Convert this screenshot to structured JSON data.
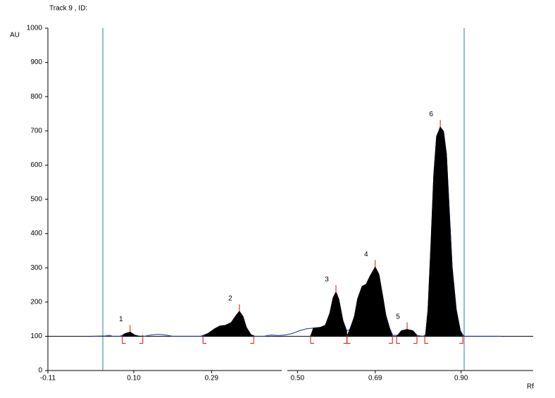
{
  "chart_data": {
    "type": "densitogram",
    "title": "Track  9 , ID:",
    "ylabel": "AU",
    "xlabel": "Rf",
    "xlim": [
      -0.11,
      1.076
    ],
    "ylim": [
      0,
      1000
    ],
    "xticks": [
      -0.11,
      {
        "value": 0.1,
        "label": "0.10"
      },
      0.29,
      {
        "value": 0.5,
        "label": "0.50"
      },
      0.69,
      {
        "value": 0.9,
        "label": "0.90"
      }
    ],
    "yticks": [
      0,
      100,
      200,
      300,
      400,
      500,
      600,
      700,
      800,
      900,
      1000
    ],
    "baseline": 100,
    "color": "#1a2fa8",
    "peak_color": "#000000",
    "marker_color": "#d01010",
    "x": [
      -0.003,
      0.031,
      0.04,
      0.048,
      0.066,
      0.079,
      0.091,
      0.103,
      0.114,
      0.126,
      0.143,
      0.16,
      0.177,
      0.195,
      0.212,
      0.238,
      0.263,
      0.281,
      0.298,
      0.31,
      0.324,
      0.338,
      0.35,
      0.358,
      0.367,
      0.375,
      0.386,
      0.396,
      0.418,
      0.436,
      0.453,
      0.47,
      0.487,
      0.504,
      0.522,
      0.539,
      0.556,
      0.568,
      0.579,
      0.587,
      0.594,
      0.601,
      0.611,
      0.62,
      0.628,
      0.639,
      0.647,
      0.658,
      0.668,
      0.678,
      0.69,
      0.699,
      0.708,
      0.716,
      0.725,
      0.733,
      0.745,
      0.754,
      0.768,
      0.782,
      0.792,
      0.806,
      0.813,
      0.819,
      0.826,
      0.833,
      0.84,
      0.849,
      0.857,
      0.864,
      0.871,
      0.878,
      0.888,
      0.898,
      0.907,
      0.978,
      0.998
    ],
    "values": [
      100,
      101,
      103,
      100,
      100,
      108,
      112,
      103,
      100,
      100,
      104,
      106,
      104,
      100,
      100,
      100,
      100,
      108,
      122,
      130,
      132,
      140,
      161,
      173,
      157,
      126,
      105,
      100,
      100,
      104,
      102,
      104,
      108,
      116,
      122,
      124,
      126,
      132,
      167,
      212,
      229,
      208,
      146,
      116,
      120,
      157,
      209,
      246,
      252,
      277,
      302,
      281,
      219,
      161,
      124,
      103,
      103,
      116,
      120,
      116,
      103,
      100,
      103,
      178,
      364,
      570,
      684,
      711,
      698,
      632,
      467,
      302,
      178,
      116,
      100,
      100,
      100
    ],
    "peaks": [
      {
        "label": "1",
        "start": 0.072,
        "max": 0.091,
        "end": 0.122,
        "height": 112
      },
      {
        "label": "2",
        "start": 0.269,
        "max": 0.358,
        "end": 0.393,
        "height": 173
      },
      {
        "label": "3",
        "start": 0.532,
        "max": 0.594,
        "end": 0.621,
        "height": 229
      },
      {
        "label": "4",
        "start": 0.621,
        "max": 0.69,
        "end": 0.732,
        "height": 302
      },
      {
        "label": "5",
        "start": 0.742,
        "max": 0.768,
        "end": 0.792,
        "height": 120
      },
      {
        "label": "6",
        "start": 0.811,
        "max": 0.849,
        "end": 0.904,
        "height": 711
      }
    ]
  }
}
